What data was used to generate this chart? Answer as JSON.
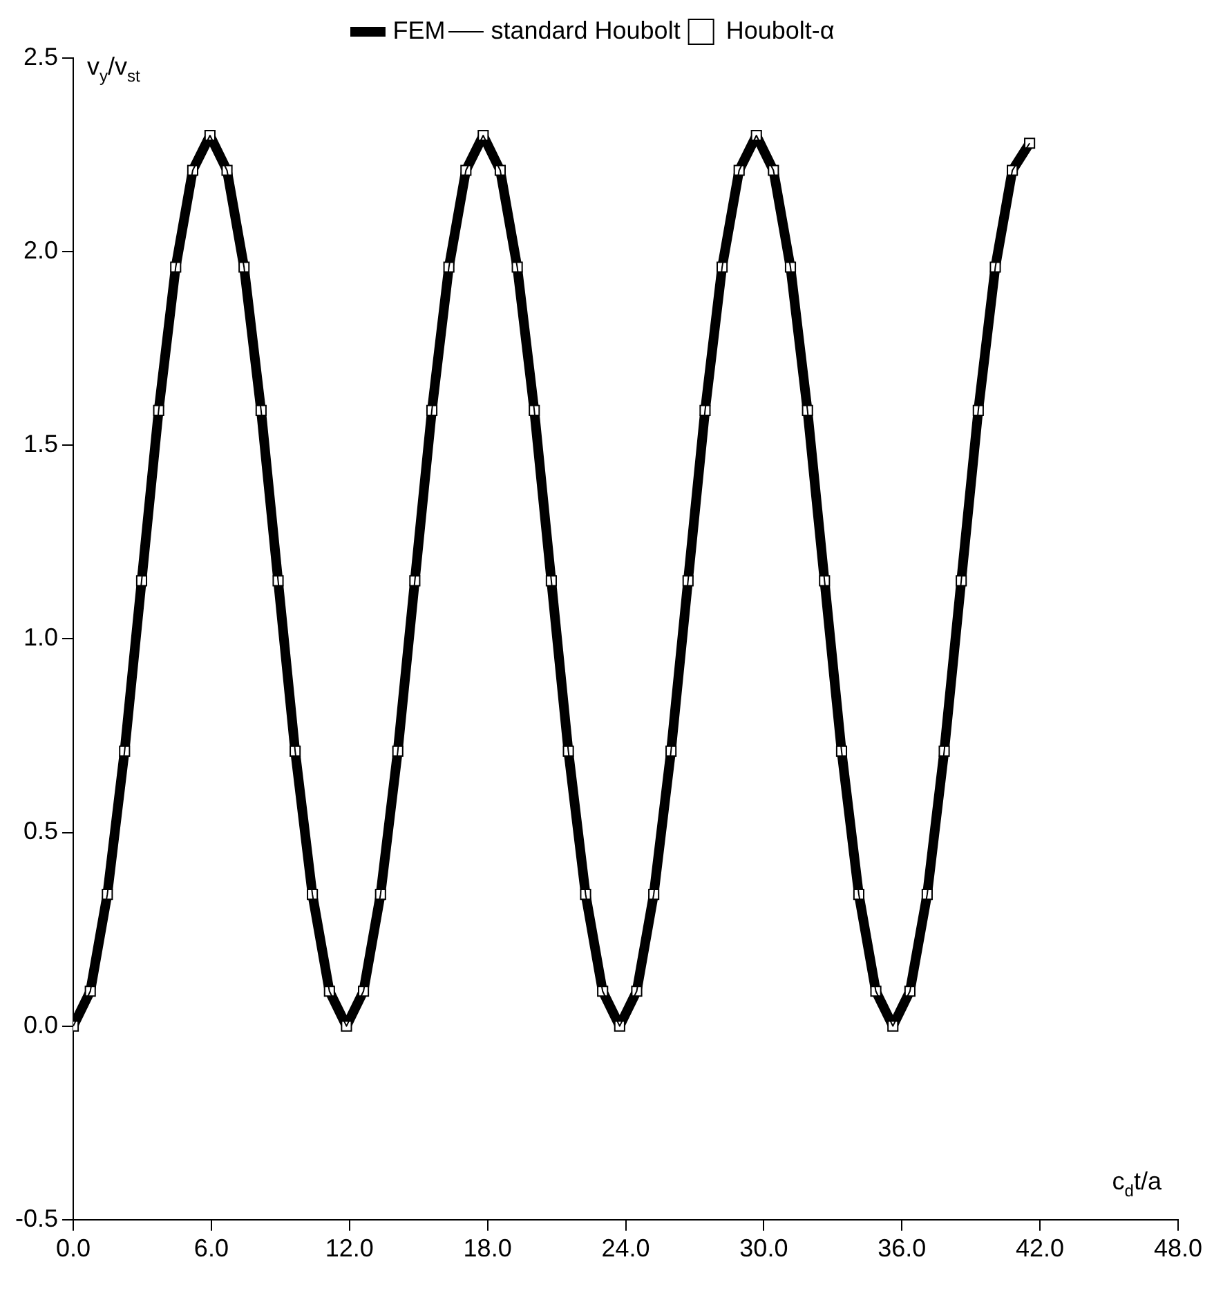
{
  "chart_data": {
    "type": "line",
    "xlabel": "c$_{d}$t/a",
    "ylabel": "v$_{y}$/v$_{st}$",
    "x": [
      0,
      0.74,
      1.48,
      2.23,
      2.97,
      3.71,
      4.45,
      5.19,
      5.94,
      6.68,
      7.42,
      8.16,
      8.9,
      9.64,
      10.39,
      11.13,
      11.87,
      12.61,
      13.35,
      14.1,
      14.84,
      15.58,
      16.32,
      17.06,
      17.81,
      18.55,
      19.29,
      20.03,
      20.77,
      21.51,
      22.26,
      23.0,
      23.74,
      24.48,
      25.22,
      25.97,
      26.71,
      27.45,
      28.19,
      28.93,
      29.68,
      30.42,
      31.16,
      31.9,
      32.64,
      33.38,
      34.13,
      34.87,
      35.61,
      36.35,
      37.1,
      37.84,
      38.58,
      39.32,
      40.06,
      40.8,
      41.55
    ],
    "series": [
      {
        "name": "FEM",
        "type": "line",
        "color": "#000000",
        "marker": "none",
        "line_style": "solid",
        "values": [
          0,
          0.09,
          0.34,
          0.71,
          1.15,
          1.59,
          1.96,
          2.21,
          2.3,
          2.21,
          1.96,
          1.59,
          1.15,
          0.71,
          0.34,
          0.09,
          0,
          0.09,
          0.34,
          0.71,
          1.15,
          1.59,
          1.96,
          2.21,
          2.3,
          2.21,
          1.96,
          1.59,
          1.15,
          0.71,
          0.34,
          0.09,
          0,
          0.09,
          0.34,
          0.71,
          1.15,
          1.59,
          1.96,
          2.21,
          2.3,
          2.21,
          1.96,
          1.59,
          1.15,
          0.71,
          0.34,
          0.09,
          0,
          0.09,
          0.34,
          0.71,
          1.15,
          1.59,
          1.96,
          2.21,
          2.28
        ]
      },
      {
        "name": "standard Houbolt",
        "type": "line",
        "color": "#000000",
        "marker": "none",
        "line_style": "solid",
        "values": [
          0,
          0.09,
          0.34,
          0.71,
          1.15,
          1.59,
          1.96,
          2.21,
          2.3,
          2.21,
          1.96,
          1.59,
          1.15,
          0.71,
          0.34,
          0.09,
          0,
          0.09,
          0.34,
          0.71,
          1.15,
          1.59,
          1.96,
          2.21,
          2.3,
          2.21,
          1.96,
          1.59,
          1.15,
          0.71,
          0.34,
          0.09,
          0,
          0.09,
          0.34,
          0.71,
          1.15,
          1.59,
          1.96,
          2.21,
          2.3,
          2.21,
          1.96,
          1.59,
          1.15,
          0.71,
          0.34,
          0.09,
          0,
          0.09,
          0.34,
          0.71,
          1.15,
          1.59,
          1.96,
          2.21,
          2.28
        ]
      },
      {
        "name": "Houbolt-α",
        "type": "scatter",
        "color": "#000000",
        "marker": "square",
        "values": [
          0,
          0.09,
          0.34,
          0.71,
          1.15,
          1.59,
          1.96,
          2.21,
          2.3,
          2.21,
          1.96,
          1.59,
          1.15,
          0.71,
          0.34,
          0.09,
          0,
          0.09,
          0.34,
          0.71,
          1.15,
          1.59,
          1.96,
          2.21,
          2.3,
          2.21,
          1.96,
          1.59,
          1.15,
          0.71,
          0.34,
          0.09,
          0,
          0.09,
          0.34,
          0.71,
          1.15,
          1.59,
          1.96,
          2.21,
          2.3,
          2.21,
          1.96,
          1.59,
          1.15,
          0.71,
          0.34,
          0.09,
          0,
          0.09,
          0.34,
          0.71,
          1.15,
          1.59,
          1.96,
          2.21,
          2.28
        ]
      }
    ],
    "xlim": [
      0,
      48
    ],
    "xticks": [
      {
        "value": 0,
        "label": "0.0"
      },
      {
        "value": 6,
        "label": "6.0"
      },
      {
        "value": 12,
        "label": "12.0"
      },
      {
        "value": 18,
        "label": "18.0"
      },
      {
        "value": 24,
        "label": "24.0"
      },
      {
        "value": 30,
        "label": "30.0"
      },
      {
        "value": 36,
        "label": "36.0"
      },
      {
        "value": 42,
        "label": "42.0"
      },
      {
        "value": 48,
        "label": "48.0"
      }
    ],
    "ylim": [
      -0.5,
      2.5
    ],
    "yticks": [
      -0.5,
      {
        "value": 0,
        "label": "0.0"
      },
      0.5,
      {
        "value": 1,
        "label": "1.0"
      },
      1.5,
      {
        "value": 2,
        "label": "2.0"
      },
      2.5
    ],
    "legend": "top"
  }
}
